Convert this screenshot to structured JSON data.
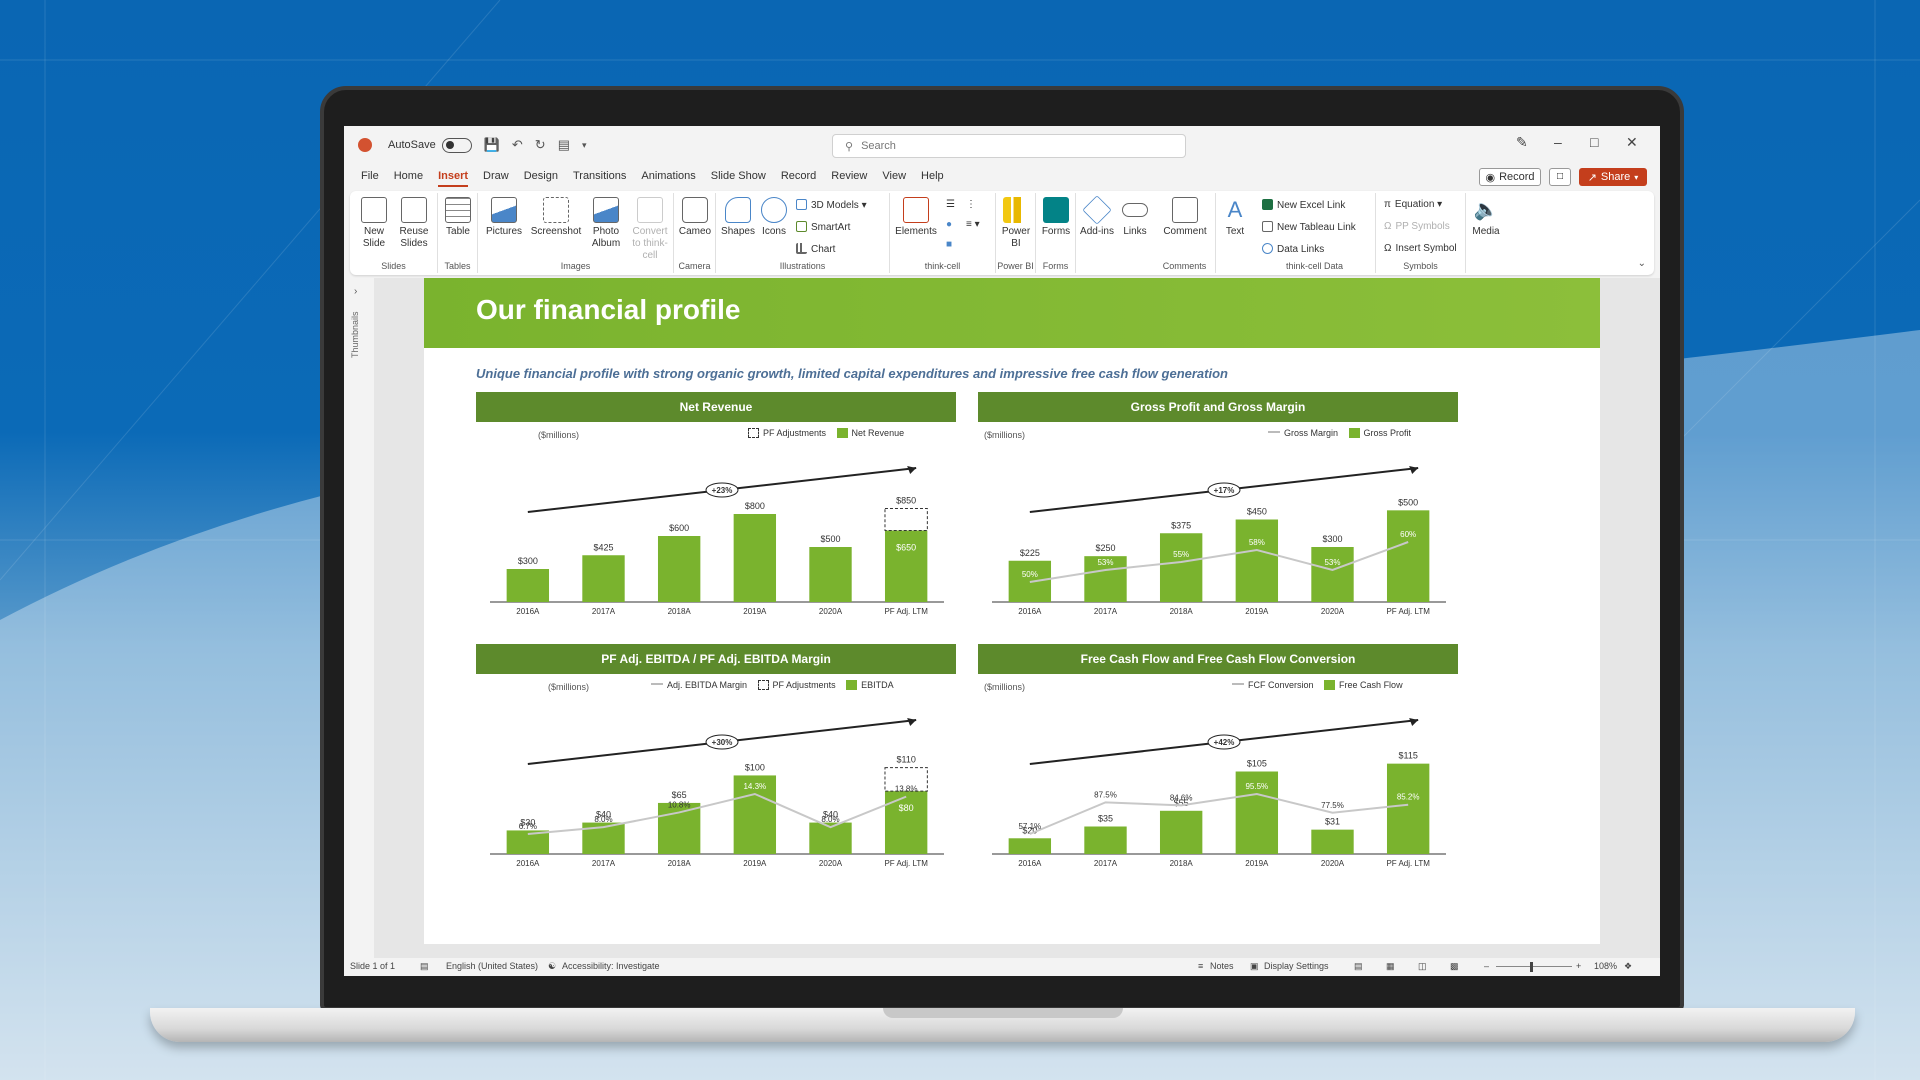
{
  "titlebar": {
    "autosave_label": "AutoSave",
    "search_placeholder": "Search"
  },
  "tabs": [
    "File",
    "Home",
    "Insert",
    "Draw",
    "Design",
    "Transitions",
    "Animations",
    "Slide Show",
    "Record",
    "Review",
    "View",
    "Help"
  ],
  "active_tab": "Insert",
  "buttons": {
    "record": "Record",
    "share": "Share"
  },
  "ribbon": {
    "new_slide": "New Slide",
    "reuse_slides": "Reuse Slides",
    "table": "Table",
    "pictures": "Pictures",
    "screenshot": "Screenshot",
    "photo_album": "Photo Album",
    "convert": "Convert to think-cell",
    "cameo": "Cameo",
    "shapes": "Shapes",
    "icons": "Icons",
    "models_3d": "3D Models",
    "smartart": "SmartArt",
    "chart": "Chart",
    "elements": "Elements",
    "power_bi": "Power BI",
    "forms": "Forms",
    "addins": "Add-ins",
    "links": "Links",
    "comment": "Comment",
    "text": "Text",
    "new_excel_link": "New Excel Link",
    "new_tableau_link": "New Tableau Link",
    "data_links": "Data Links",
    "equation": "Equation",
    "pp_symbols": "PP Symbols",
    "insert_symbol": "Insert Symbol",
    "media": "Media",
    "groups": {
      "slides": "Slides",
      "tables": "Tables",
      "images": "Images",
      "camera": "Camera",
      "illustrations": "Illustrations",
      "thinkcell": "think-cell",
      "powerbi": "Power BI",
      "forms": "Forms",
      "comments": "Comments",
      "thinkcell_data": "think-cell Data",
      "symbols": "Symbols"
    }
  },
  "thumbnails_label": "Thumbnails",
  "slide": {
    "title": "Our financial profile",
    "subtitle": "Unique financial profile with strong organic growth, limited capital expenditures and impressive free cash flow generation"
  },
  "chart_data": [
    {
      "type": "bar",
      "title": "Net Revenue",
      "units": "($millions)",
      "legend": [
        "PF Adjustments",
        "Net Revenue"
      ],
      "categories": [
        "2016A",
        "2017A",
        "2018A",
        "2019A",
        "2020A",
        "PF Adj. LTM"
      ],
      "values": [
        300,
        425,
        600,
        800,
        500,
        650
      ],
      "value_labels": [
        "$300",
        "$425",
        "$600",
        "$800",
        "$500",
        "$650"
      ],
      "pf_adjustment": 200,
      "pf_total_label": "$850",
      "growth_label": "+23%",
      "ylim": [
        0,
        1000
      ]
    },
    {
      "type": "bar",
      "title": "Gross Profit and Gross Margin",
      "units": "($millions)",
      "legend": [
        "Gross Margin",
        "Gross Profit"
      ],
      "categories": [
        "2016A",
        "2017A",
        "2018A",
        "2019A",
        "2020A",
        "PF Adj. LTM"
      ],
      "values": [
        225,
        250,
        375,
        450,
        300,
        500
      ],
      "value_labels": [
        "$225",
        "$250",
        "$375",
        "$450",
        "$300",
        "$500"
      ],
      "line_values": [
        50,
        53,
        55,
        58,
        53,
        60
      ],
      "line_labels": [
        "50%",
        "53%",
        "55%",
        "58%",
        "53%",
        "60%"
      ],
      "growth_label": "+17%",
      "ylim": [
        0,
        600
      ]
    },
    {
      "type": "bar",
      "title": "PF Adj. EBITDA / PF Adj. EBITDA Margin",
      "units": "($millions)",
      "legend": [
        "Adj. EBITDA  Margin",
        "PF Adjustments",
        "EBITDA"
      ],
      "categories": [
        "2016A",
        "2017A",
        "2018A",
        "2019A",
        "2020A",
        "PF Adj. LTM"
      ],
      "values": [
        30,
        40,
        65,
        100,
        40,
        80
      ],
      "value_labels": [
        "$30",
        "$40",
        "$65",
        "$100",
        "$40",
        "$80"
      ],
      "pf_adjustment": 30,
      "pf_total_label": "$110",
      "line_values": [
        6.7,
        8.0,
        10.8,
        14.3,
        8.0,
        13.8
      ],
      "line_labels": [
        "6.7%",
        "8.0%",
        "10.8%",
        "14.3%",
        "8.0%",
        "13.8%"
      ],
      "growth_label": "+30%",
      "ylim": [
        0,
        140
      ]
    },
    {
      "type": "bar",
      "title": "Free Cash Flow and Free Cash Flow Conversion",
      "units": "($millions)",
      "legend": [
        "FCF  Conversion",
        "Free Cash Flow"
      ],
      "categories": [
        "2016A",
        "2017A",
        "2018A",
        "2019A",
        "2020A",
        "PF Adj. LTM"
      ],
      "values": [
        20,
        35,
        55,
        105,
        31,
        115
      ],
      "value_labels": [
        "$20",
        "$35",
        "$55",
        "$105",
        "$31",
        "$115"
      ],
      "line_values": [
        57.1,
        87.5,
        84.6,
        95.5,
        77.5,
        85.2
      ],
      "line_labels": [
        "57.1%",
        "87.5%",
        "84.6%",
        "95.5%",
        "77.5%",
        "85.2%"
      ],
      "growth_label": "+42%",
      "ylim": [
        0,
        140
      ]
    }
  ],
  "statusbar": {
    "slide_info": "Slide 1 of 1",
    "language": "English (United States)",
    "accessibility": "Accessibility: Investigate",
    "notes": "Notes",
    "display_settings": "Display Settings",
    "zoom": "108%"
  },
  "colors": {
    "accent": "#c43e1c",
    "bar": "#7ab32e",
    "header": "#5d8a2c"
  }
}
